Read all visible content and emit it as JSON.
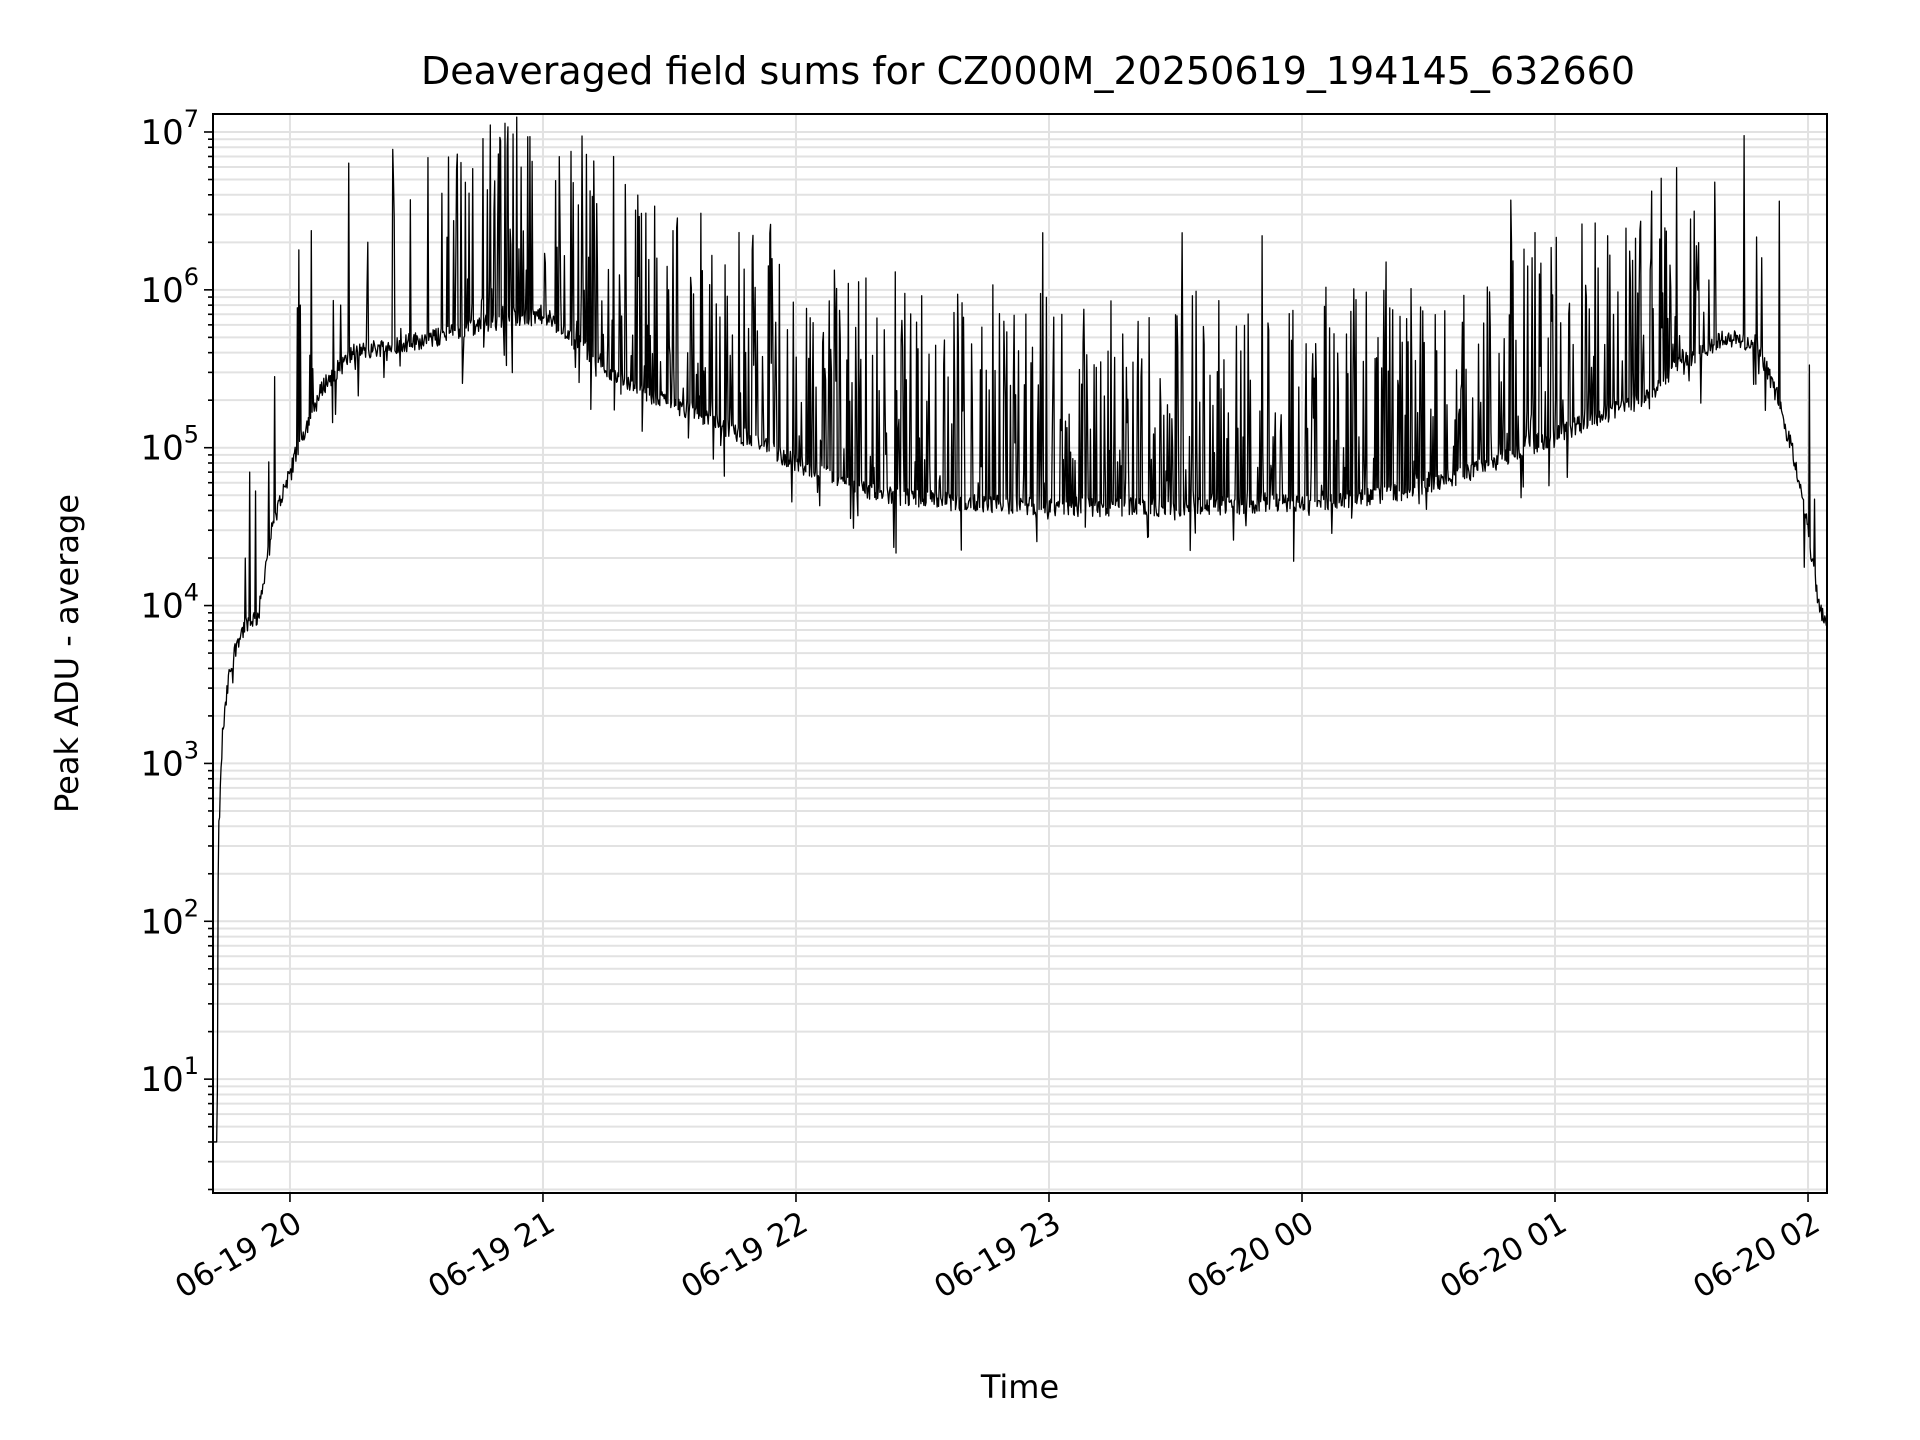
{
  "chart_data": {
    "type": "line",
    "title": "Deaveraged field sums for CZ000M_20250619_194145_632660",
    "xlabel": "Time",
    "ylabel": "Peak ADU - average",
    "yscale": "log",
    "ylim": [
      1.9,
      13000000
    ],
    "xlim": [
      "2025-06-19 19:41:45",
      "2025-06-20 02:04:30"
    ],
    "x_ticks": [
      {
        "t": "2025-06-19 20:00",
        "label": "06-19 20"
      },
      {
        "t": "2025-06-19 21:00",
        "label": "06-19 21"
      },
      {
        "t": "2025-06-19 22:00",
        "label": "06-19 22"
      },
      {
        "t": "2025-06-19 23:00",
        "label": "06-19 23"
      },
      {
        "t": "2025-06-20 00:00",
        "label": "06-20 00"
      },
      {
        "t": "2025-06-20 01:00",
        "label": "06-20 01"
      },
      {
        "t": "2025-06-20 02:00",
        "label": "06-20 02"
      }
    ],
    "y_ticks": [
      {
        "v": 10,
        "base": "10",
        "exp": "1"
      },
      {
        "v": 100,
        "base": "10",
        "exp": "2"
      },
      {
        "v": 1000,
        "base": "10",
        "exp": "3"
      },
      {
        "v": 10000,
        "base": "10",
        "exp": "4"
      },
      {
        "v": 100000,
        "base": "10",
        "exp": "5"
      },
      {
        "v": 1000000,
        "base": "10",
        "exp": "6"
      },
      {
        "v": 10000000,
        "base": "10",
        "exp": "7"
      }
    ],
    "grid": true,
    "series": [
      {
        "color": "#000000",
        "baseline": [
          [
            "2025-06-19 19:41:45",
            4
          ],
          [
            "2025-06-19 19:42:45",
            4
          ],
          [
            "2025-06-19 19:43:00",
            300
          ],
          [
            "2025-06-19 19:44:00",
            1500
          ],
          [
            "2025-06-19 19:45:30",
            3500
          ],
          [
            "2025-06-19 19:47:30",
            6000
          ],
          [
            "2025-06-19 19:50:00",
            8000
          ],
          [
            "2025-06-19 19:52:30",
            8500
          ],
          [
            "2025-06-19 19:55:00",
            25000
          ],
          [
            "2025-06-19 19:58:00",
            50000
          ],
          [
            "2025-06-19 20:03:00",
            120000
          ],
          [
            "2025-06-19 20:08:00",
            250000
          ],
          [
            "2025-06-19 20:15:00",
            400000
          ],
          [
            "2025-06-19 20:25:00",
            450000
          ],
          [
            "2025-06-19 20:35:00",
            500000
          ],
          [
            "2025-06-19 20:45:00",
            600000
          ],
          [
            "2025-06-19 21:00:00",
            700000
          ],
          [
            "2025-06-19 21:20:00",
            250000
          ],
          [
            "2025-06-19 21:40:00",
            150000
          ],
          [
            "2025-06-19 22:00:00",
            80000
          ],
          [
            "2025-06-19 22:20:00",
            50000
          ],
          [
            "2025-06-19 22:40:00",
            45000
          ],
          [
            "2025-06-19 23:00:00",
            42000
          ],
          [
            "2025-06-19 23:30:00",
            42000
          ],
          [
            "2025-06-20 00:00:00",
            45000
          ],
          [
            "2025-06-20 00:20:00",
            50000
          ],
          [
            "2025-06-20 00:40:00",
            70000
          ],
          [
            "2025-06-20 01:00:00",
            120000
          ],
          [
            "2025-06-20 01:20:00",
            200000
          ],
          [
            "2025-06-20 01:30:00",
            350000
          ],
          [
            "2025-06-20 01:40:00",
            500000
          ],
          [
            "2025-06-20 01:48:00",
            450000
          ],
          [
            "2025-06-20 01:53:00",
            200000
          ],
          [
            "2025-06-20 01:57:00",
            80000
          ],
          [
            "2025-06-20 02:00:00",
            30000
          ],
          [
            "2025-06-20 02:02:30",
            10000
          ],
          [
            "2025-06-20 02:04:30",
            7000
          ]
        ],
        "spikes": [
          [
            "2025-06-19 19:50:30",
            70000
          ],
          [
            "2025-06-19 20:02:30",
            800000
          ],
          [
            "2025-06-19 20:12:00",
            800000
          ],
          [
            "2025-06-19 20:18:30",
            2000000
          ],
          [
            "2025-06-19 20:39:30",
            5800000
          ],
          [
            "2025-06-19 20:40:30",
            6400000
          ],
          [
            "2025-06-19 20:42:30",
            4100000
          ],
          [
            "2025-06-19 21:04:00",
            2700000
          ],
          [
            "2025-06-19 21:13:00",
            1400000
          ],
          [
            "2025-06-19 21:22:00",
            3200000
          ],
          [
            "2025-06-19 21:35:00",
            1200000
          ],
          [
            "2025-06-19 21:54:00",
            2600000
          ],
          [
            "2025-06-19 22:23:30",
            1300000
          ],
          [
            "2025-06-19 22:58:30",
            2300000
          ],
          [
            "2025-06-19 23:31:30",
            2300000
          ],
          [
            "2025-06-19 23:50:30",
            2200000
          ],
          [
            "2025-06-20 00:20:00",
            1500000
          ],
          [
            "2025-06-20 00:49:30",
            3700000
          ],
          [
            "2025-06-20 01:12:30",
            2200000
          ],
          [
            "2025-06-20 01:38:00",
            1800000
          ]
        ]
      }
    ]
  }
}
